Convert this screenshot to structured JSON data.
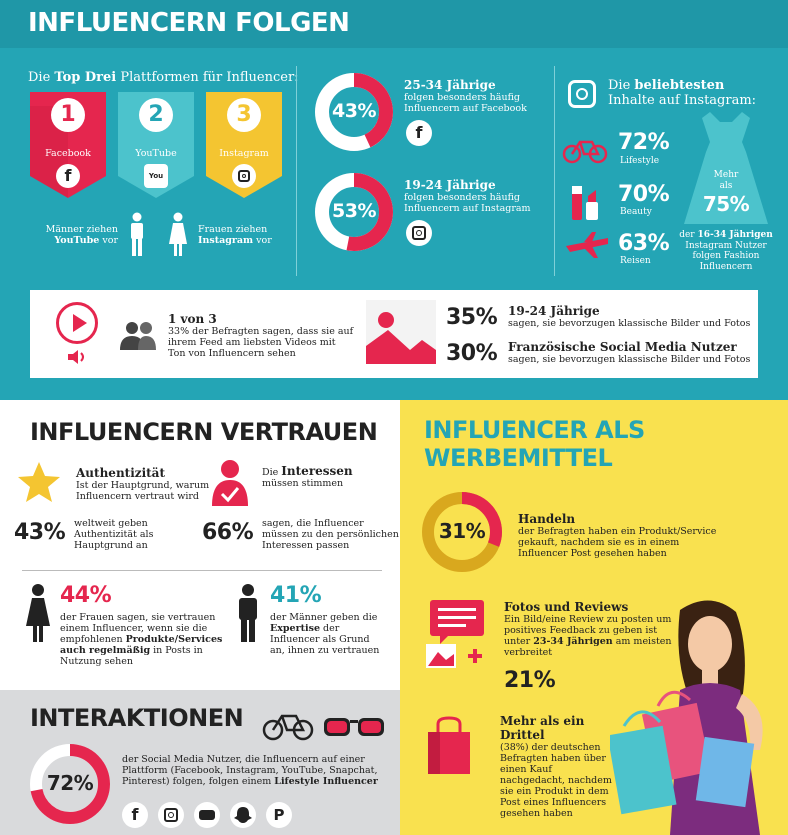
{
  "top": {
    "title": "INFLUENCERN FOLGEN",
    "platforms": {
      "intro_pre": "Die ",
      "intro_bold": "Top Drei",
      "intro_post": " Plattformen für Influencer:",
      "items": [
        {
          "num": "1",
          "name": "Facebook",
          "icon": "facebook-icon",
          "color": "#e5264e"
        },
        {
          "num": "2",
          "name": "YouTube",
          "icon": "youtube-icon",
          "color": "#4cc3cc"
        },
        {
          "num": "3",
          "name": "Instagram",
          "icon": "instagram-icon",
          "color": "#f4c531"
        }
      ],
      "men_line1": "Männer ziehen",
      "men_bold": "YouTube",
      "men_post": " vor",
      "women_line1": "Frauen ziehen",
      "women_bold": "Instagram",
      "women_post": " vor"
    },
    "ages": [
      {
        "pct": "43%",
        "value": 43,
        "title": "25-34 Jährige",
        "line1": "folgen besonders häufig",
        "line2": "Influencern auf Facebook",
        "icon": "facebook-icon"
      },
      {
        "pct": "53%",
        "value": 53,
        "title": "19-24 Jährige",
        "line1": "folgen besonders häufig",
        "line2": "Influencern auf Instagram",
        "icon": "instagram-icon"
      }
    ],
    "instagram": {
      "head1": "Die ",
      "head_bold": "beliebtesten",
      "head2": "Inhalte auf Instagram:",
      "items": [
        {
          "pct": "72%",
          "label": "Lifestyle",
          "icon": "bicycle-icon"
        },
        {
          "pct": "70%",
          "label": "Beauty",
          "icon": "lipstick-icon"
        },
        {
          "pct": "63%",
          "label": "Reisen",
          "icon": "airplane-icon"
        }
      ],
      "dress_line1": "Mehr",
      "dress_line2": "als",
      "dress_pct": "75%",
      "note_pre": "der ",
      "note_bold": "16-34 Jährigen",
      "note_line2": "Instagram Nutzer",
      "note_line3": "folgen Fashion",
      "note_line4": "Influencern"
    },
    "video": {
      "title": "1 von 3",
      "line1": "33% der Befragten sagen, dass sie auf",
      "line2": "ihrem Feed am liebsten Videos mit",
      "line3": "Ton von Influencern sehen"
    },
    "pictures": [
      {
        "pct": "35%",
        "title": "19-24 Jährige",
        "text": "sagen, sie bevorzugen klassische Bilder und Fotos"
      },
      {
        "pct": "30%",
        "title": "Französische Social Media Nutzer",
        "text": "sagen, sie bevorzugen klassische Bilder und Fotos"
      }
    ]
  },
  "trust": {
    "title": "INFLUENCERN VERTRAUEN",
    "auth_title": "Authentizität",
    "auth_line1": "Ist der Hauptgrund, warum",
    "auth_line2": "Influencern vertraut wird",
    "int_pre": "Die ",
    "int_bold": "Interessen",
    "int_line2": "müssen stimmen",
    "stat1_pct": "43%",
    "stat1_line1": "weltweit geben",
    "stat1_line2": "Authentizität als",
    "stat1_line3": "Hauptgrund an",
    "stat2_pct": "66%",
    "stat2_line1": "sagen, die Influencer",
    "stat2_line2": "müssen zu den persönlichen",
    "stat2_line3": "Interessen passen",
    "women_pct": "44%",
    "women_line1": "der Frauen sagen, sie vertrauen",
    "women_line2": "einem Influencer, wenn sie die",
    "women_line3_pre": "empfohlenen ",
    "women_line3_bold": "Produkte/Services",
    "women_line4_bold": "auch regelmäßig",
    "women_line4_post": " in Posts in",
    "women_line5": "Nutzung sehen",
    "men_pct": "41%",
    "men_line1": "der Männer geben die",
    "men_line2_bold": "Expertise",
    "men_line2_post": " der",
    "men_line3": "Influencer als Grund",
    "men_line4": "an, ihnen zu vertrauen"
  },
  "inter": {
    "title": "INTERAKTIONEN",
    "pct": "72%",
    "value": 72,
    "line1": "der Social Media Nutzer, die Influencern auf einer",
    "line2": "Plattform (Facebook, Instagram, YouTube, Snapchat,",
    "line3_pre": "Pinterest) folgen, folgen einem ",
    "line3_bold": "Lifestyle Influencer",
    "socials": [
      "facebook-icon",
      "instagram-icon",
      "youtube-icon",
      "snapchat-icon",
      "pinterest-icon"
    ]
  },
  "ads": {
    "title1": "INFLUENCER ALS",
    "title2": "WERBEMITTEL",
    "pct": "31%",
    "value": 31,
    "handeln_title": "Handeln",
    "handeln_line1": "der Befragten haben ein Produkt/Service",
    "handeln_line2": "gekauft, nachdem sie es in einem",
    "handeln_line3": "Influencer Post gesehen haben",
    "fotos_title": "Fotos und Reviews",
    "fotos_line1": "Ein Bild/eine Review zu posten um",
    "fotos_line2": "positives Feedback zu geben ist",
    "fotos_line3_pre": "unter ",
    "fotos_line3_bold": "23-34 Jährigen",
    "fotos_line3_post": " am meisten",
    "fotos_line4": "verbreitet",
    "fotos_pct": "21%",
    "drittel_title1": "Mehr als ein",
    "drittel_title2": "Drittel",
    "drittel_line1": "(38%) der deutschen",
    "drittel_line2": "Befragten haben über",
    "drittel_line3": "einen Kauf",
    "drittel_line4": "nachgedacht, nachdem",
    "drittel_line5": "sie ein Produkt in dem",
    "drittel_line6": "Post eines Influencers",
    "drittel_line7": "gesehen haben"
  },
  "colors": {
    "teal": "#24a5b5",
    "red": "#e5264e",
    "yellow": "#f9e14f",
    "gold": "#d9a81e",
    "dark": "#222222"
  }
}
